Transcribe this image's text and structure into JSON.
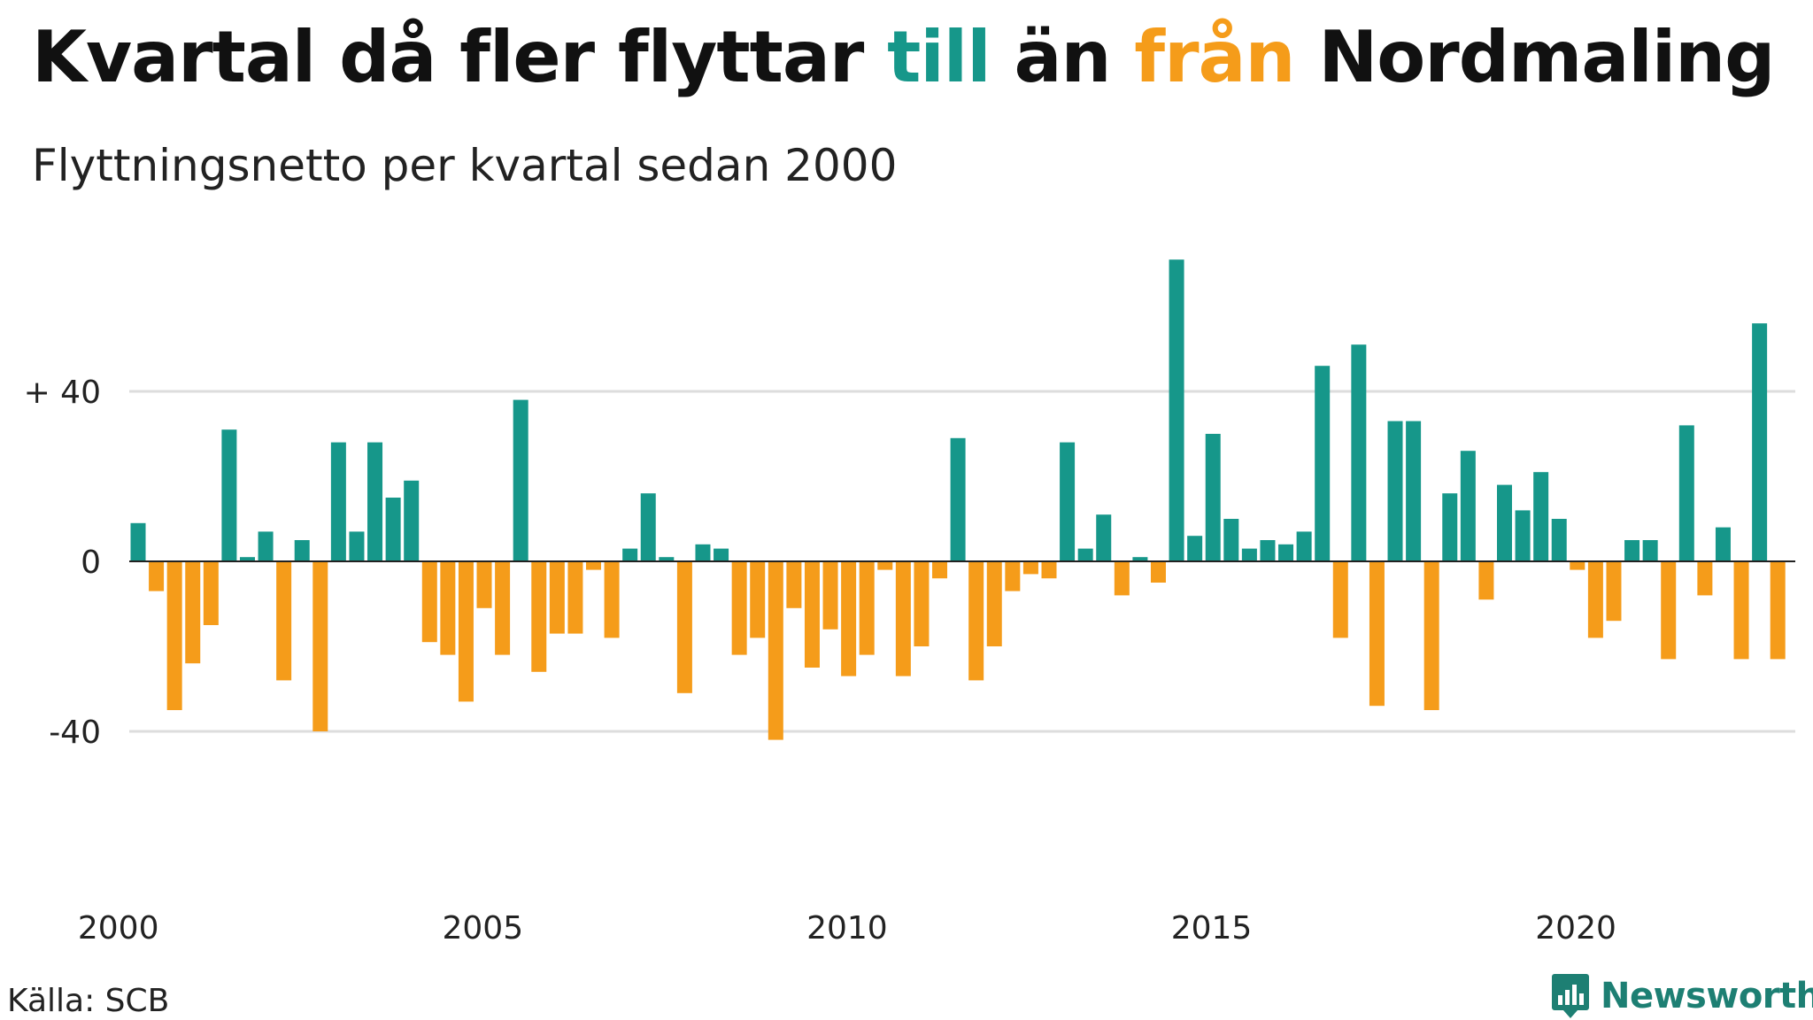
{
  "title": {
    "part1": "Kvartal då fler flyttar ",
    "till": "till",
    "part2": " än ",
    "fran": "från",
    "part3": " Nordmaling"
  },
  "subtitle": "Flyttningsnetto per kvartal sedan 2000",
  "source": "Källa: SCB",
  "brand": "Newsworthy",
  "colors": {
    "positive": "#16978a",
    "negative": "#f59c1a",
    "grid": "#dddddd",
    "zero": "#222222"
  },
  "chart_data": {
    "type": "bar",
    "title": "Kvartal då fler flyttar till än från Nordmaling",
    "subtitle": "Flyttningsnetto per kvartal sedan 2000",
    "x_start": "2000 Q1",
    "x_tick_labels": [
      "2000",
      "2005",
      "2010",
      "2015",
      "2020"
    ],
    "y_tick_labels": [
      "+ 40",
      "0",
      "-40"
    ],
    "y_ticks": [
      40,
      0,
      -40
    ],
    "ylim": [
      -70,
      72
    ],
    "grid": true,
    "values": [
      9,
      -7,
      -35,
      -24,
      -15,
      31,
      1,
      7,
      -28,
      5,
      -40,
      28,
      7,
      28,
      15,
      19,
      -19,
      -22,
      -33,
      -11,
      -22,
      38,
      -26,
      -17,
      -17,
      -2,
      -18,
      3,
      16,
      1,
      -31,
      4,
      3,
      -22,
      -18,
      -42,
      -11,
      -25,
      -16,
      -27,
      -22,
      -2,
      -27,
      -20,
      -4,
      29,
      -28,
      -20,
      -7,
      -3,
      -4,
      28,
      3,
      11,
      -8,
      1,
      -5,
      71,
      6,
      30,
      10,
      3,
      5,
      4,
      7,
      46,
      -18,
      51,
      -34,
      33,
      33,
      -35,
      16,
      26,
      -9,
      18,
      12,
      21,
      10,
      -2,
      -18,
      -14,
      5,
      5,
      -23,
      32,
      -8,
      8,
      -23,
      56,
      -23
    ]
  }
}
